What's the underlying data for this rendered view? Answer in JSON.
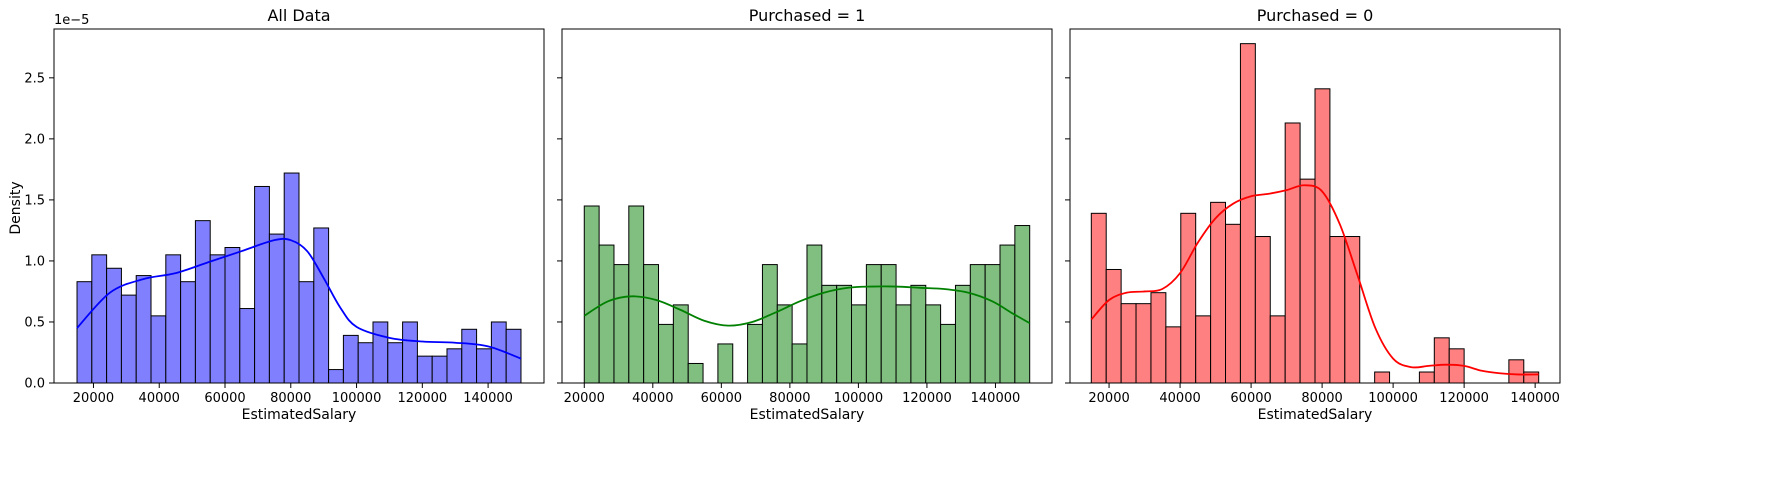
{
  "figure": {
    "ylabel": "Density",
    "y_exponent_label": "1e−5",
    "shared_y": true,
    "ylim": [
      0,
      2.9
    ],
    "yticks": [
      0.0,
      0.5,
      1.0,
      1.5,
      2.0,
      2.5
    ],
    "ytick_labels": [
      "0.0",
      "0.5",
      "1.0",
      "1.5",
      "2.0",
      "2.5"
    ],
    "units_note": "Density values are in units of 1e-5"
  },
  "chart_data": [
    {
      "type": "bar",
      "title": "All Data",
      "xlabel": "EstimatedSalary",
      "ylabel": "Density",
      "color": "#8080ff",
      "kde_color": "#0000ff",
      "xlim": [
        8000,
        157000
      ],
      "xticks": [
        20000,
        40000,
        60000,
        80000,
        100000,
        120000,
        140000
      ],
      "bins": {
        "start": 15000,
        "width": 4500
      },
      "values": [
        0.83,
        1.05,
        0.94,
        0.72,
        0.88,
        0.55,
        1.05,
        0.83,
        1.33,
        1.05,
        1.11,
        0.61,
        1.61,
        1.22,
        1.72,
        0.83,
        1.27,
        0.11,
        0.39,
        0.33,
        0.5,
        0.33,
        0.5,
        0.22,
        0.22,
        0.28,
        0.44,
        0.28,
        0.5,
        0.44
      ],
      "kde": {
        "x": [
          15000,
          25000,
          35000,
          45000,
          55000,
          65000,
          75000,
          80000,
          85000,
          90000,
          95000,
          100000,
          110000,
          120000,
          130000,
          140000,
          150000
        ],
        "y": [
          0.45,
          0.74,
          0.85,
          0.9,
          0.99,
          1.08,
          1.17,
          1.17,
          1.08,
          0.86,
          0.62,
          0.46,
          0.37,
          0.34,
          0.33,
          0.3,
          0.2
        ]
      }
    },
    {
      "type": "bar",
      "title": "Purchased = 1",
      "xlabel": "EstimatedSalary",
      "ylabel": "",
      "color": "#80bf80",
      "kde_color": "#008000",
      "xlim": [
        13500,
        156500
      ],
      "xticks": [
        20000,
        40000,
        60000,
        80000,
        100000,
        120000,
        140000
      ],
      "bins": {
        "start": 20000,
        "width": 4333
      },
      "values": [
        1.45,
        1.13,
        0.97,
        1.45,
        0.97,
        0.48,
        0.64,
        0.16,
        0,
        0.32,
        0,
        0.48,
        0.97,
        0.64,
        0.32,
        1.13,
        0.8,
        0.8,
        0.64,
        0.97,
        0.97,
        0.64,
        0.8,
        0.64,
        0.48,
        0.8,
        0.97,
        0.97,
        1.13,
        1.29
      ],
      "kde": {
        "x": [
          20000,
          27000,
          34000,
          41000,
          48000,
          55000,
          62000,
          69000,
          76000,
          83000,
          90000,
          97000,
          104000,
          111000,
          118000,
          125000,
          132000,
          139000,
          145000,
          150000
        ],
        "y": [
          0.55,
          0.67,
          0.71,
          0.68,
          0.6,
          0.51,
          0.47,
          0.5,
          0.58,
          0.67,
          0.74,
          0.78,
          0.79,
          0.79,
          0.78,
          0.77,
          0.74,
          0.67,
          0.57,
          0.49
        ]
      }
    },
    {
      "type": "bar",
      "title": "Purchased = 0",
      "xlabel": "EstimatedSalary",
      "ylabel": "",
      "color": "#ff8080",
      "kde_color": "#ff0000",
      "xlim": [
        9000,
        147000
      ],
      "xticks": [
        20000,
        40000,
        60000,
        80000,
        100000,
        120000,
        140000
      ],
      "bins": {
        "start": 15000,
        "width": 4200
      },
      "values": [
        1.39,
        0.93,
        0.65,
        0.65,
        0.74,
        0.46,
        1.39,
        0.55,
        1.48,
        1.3,
        2.78,
        1.2,
        0.55,
        2.13,
        1.67,
        2.41,
        1.2,
        1.2,
        0,
        0.09,
        0,
        0,
        0.09,
        0.37,
        0.28,
        0,
        0,
        0,
        0.19,
        0.09
      ],
      "kde": {
        "x": [
          15000,
          20000,
          25000,
          30000,
          35000,
          40000,
          45000,
          50000,
          55000,
          60000,
          65000,
          70000,
          75000,
          80000,
          85000,
          90000,
          95000,
          100000,
          105000,
          110000,
          115000,
          120000,
          125000,
          130000,
          135000,
          141000
        ],
        "y": [
          0.52,
          0.68,
          0.74,
          0.75,
          0.77,
          0.9,
          1.15,
          1.35,
          1.47,
          1.53,
          1.55,
          1.58,
          1.62,
          1.57,
          1.3,
          0.88,
          0.45,
          0.2,
          0.13,
          0.14,
          0.15,
          0.14,
          0.1,
          0.08,
          0.07,
          0.07
        ]
      }
    }
  ]
}
